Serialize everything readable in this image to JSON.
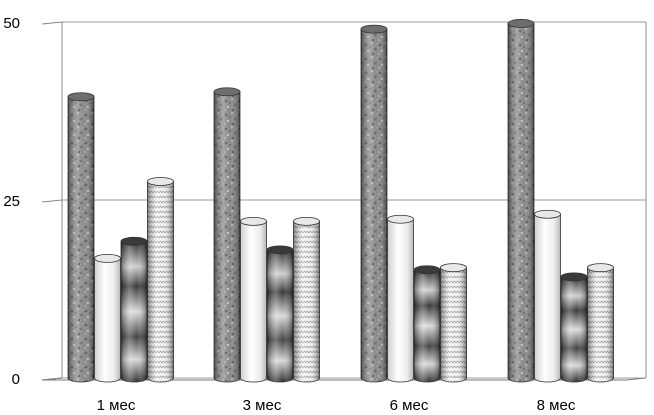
{
  "chart_data": {
    "type": "bar",
    "title": "",
    "xlabel": "",
    "ylabel": "",
    "ylim": [
      0,
      50
    ],
    "yticks": [
      "0",
      "25",
      "50"
    ],
    "categories": [
      "1 мес",
      "3 мес",
      "6 мес",
      "8 мес"
    ],
    "series": [
      {
        "pattern": "granite",
        "values": [
          39.5,
          40.2,
          49,
          49.8
        ]
      },
      {
        "pattern": "light-cylinder",
        "values": [
          16.8,
          22,
          22.3,
          23
        ]
      },
      {
        "pattern": "banded-dark",
        "values": [
          19.2,
          18,
          15.2,
          14.2
        ]
      },
      {
        "pattern": "zigzag",
        "values": [
          27.6,
          22,
          15.5,
          15.5
        ]
      }
    ],
    "grid": true,
    "legend": "none",
    "style": "3d-cylinders"
  }
}
